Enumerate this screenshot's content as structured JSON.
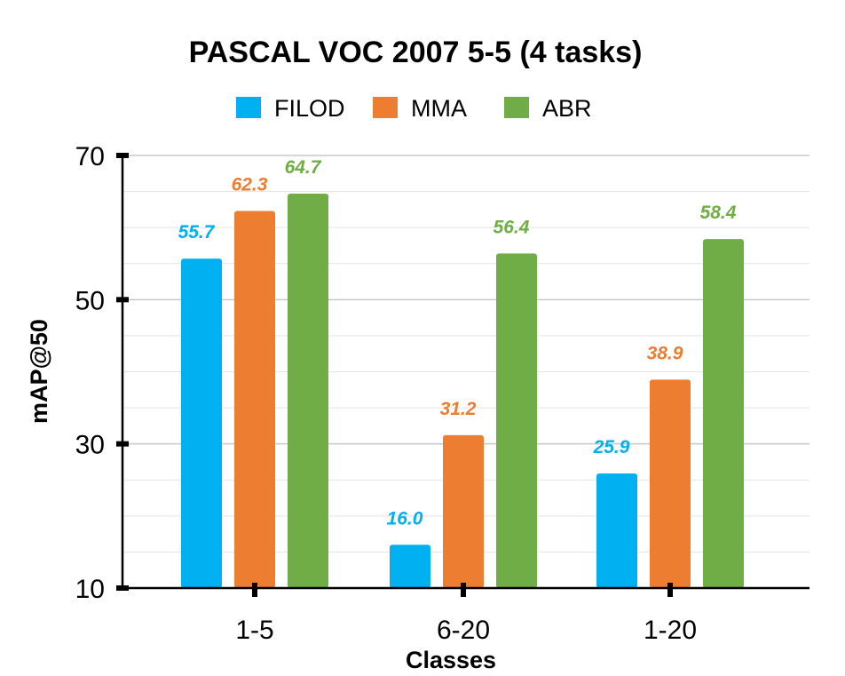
{
  "chart_data": {
    "type": "bar",
    "title": "PASCAL VOC 2007 5-5 (4 tasks)",
    "xlabel": "Classes",
    "ylabel": "mAP@50",
    "categories": [
      "1-5",
      "6-20",
      "1-20"
    ],
    "ylim": [
      10,
      70
    ],
    "y_ticks": [
      "10",
      "30",
      "50",
      "70"
    ],
    "minor_gridlines": true,
    "legend_position": "top",
    "series": [
      {
        "name": "FILOD",
        "color": "#00B0F0",
        "values": [
          55.7,
          16.0,
          25.9
        ],
        "labels": [
          "55.7",
          "16.0",
          "25.9"
        ]
      },
      {
        "name": "MMA",
        "color": "#ED7D31",
        "values": [
          62.3,
          31.2,
          38.9
        ],
        "labels": [
          "62.3",
          "31.2",
          "38.9"
        ]
      },
      {
        "name": "ABR",
        "color": "#70AD47",
        "values": [
          64.7,
          56.4,
          58.4
        ],
        "labels": [
          "64.7",
          "56.4",
          "58.4"
        ]
      }
    ]
  }
}
